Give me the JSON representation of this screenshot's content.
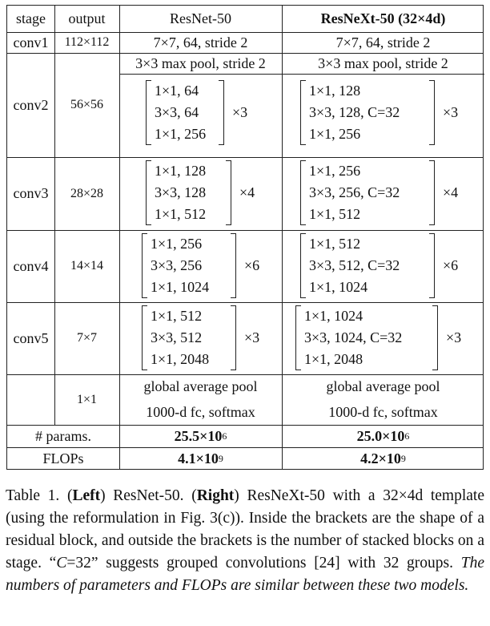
{
  "table": {
    "headers": {
      "stage": "stage",
      "output": "output",
      "resnet": "ResNet-50",
      "resnext": "ResNeXt-50 (32×4d)"
    },
    "conv1": {
      "stage": "conv1",
      "output": "112×112",
      "resnet": "7×7, 64, stride 2",
      "resnext": "7×7, 64, stride 2"
    },
    "conv2": {
      "stage": "conv2",
      "output": "56×56",
      "pool_resnet": "3×3 max pool, stride 2",
      "pool_resnext": "3×3 max pool, stride 2",
      "resnet_lines": [
        "1×1, 64",
        "3×3, 64",
        "1×1, 256"
      ],
      "resnet_mult": "×3",
      "resnext_lines": [
        "1×1, 128",
        "3×3, 128, C=32",
        "1×1, 256"
      ],
      "resnext_mult": "×3"
    },
    "conv3": {
      "stage": "conv3",
      "output": "28×28",
      "resnet_lines": [
        "1×1, 128",
        "3×3, 128",
        "1×1, 512"
      ],
      "resnet_mult": "×4",
      "resnext_lines": [
        "1×1, 256",
        "3×3, 256, C=32",
        "1×1, 512"
      ],
      "resnext_mult": "×4"
    },
    "conv4": {
      "stage": "conv4",
      "output": "14×14",
      "resnet_lines": [
        "1×1, 256",
        "3×3, 256",
        "1×1, 1024"
      ],
      "resnet_mult": "×6",
      "resnext_lines": [
        "1×1, 512",
        "3×3, 512, C=32",
        "1×1, 1024"
      ],
      "resnext_mult": "×6"
    },
    "conv5": {
      "stage": "conv5",
      "output": "7×7",
      "resnet_lines": [
        "1×1, 512",
        "3×3, 512",
        "1×1, 2048"
      ],
      "resnet_mult": "×3",
      "resnext_lines": [
        "1×1, 1024",
        "3×3, 1024, C=32",
        "1×1, 2048"
      ],
      "resnext_mult": "×3"
    },
    "final": {
      "output": "1×1",
      "resnet_lines": [
        "global average pool",
        "1000-d fc, softmax"
      ],
      "resnext_lines": [
        "global average pool",
        "1000-d fc, softmax"
      ]
    },
    "params": {
      "label": "# params.",
      "resnet": "25.5×10",
      "resnet_exp": "6",
      "resnext": "25.0×10",
      "resnext_exp": "6"
    },
    "flops": {
      "label": "FLOPs",
      "resnet": "4.1×10",
      "resnet_exp": "9",
      "resnext": "4.2×10",
      "resnext_exp": "9"
    }
  },
  "caption": {
    "prefix": "Table 1. (",
    "left": "Left",
    "mid1": ") ResNet-50. (",
    "right": "Right",
    "mid2": ") ResNeXt-50 with a 32×4d template (using the reformulation in Fig. 3(c)). Inside the brackets are the shape of a residual block, and outside the brackets is the number of stacked blocks on a stage. “",
    "c_var": "C",
    "mid3": "=32” suggests grouped convolutions [24] with 32 groups. ",
    "italic_tail": "The numbers of parameters and FLOPs are similar between these two models."
  }
}
